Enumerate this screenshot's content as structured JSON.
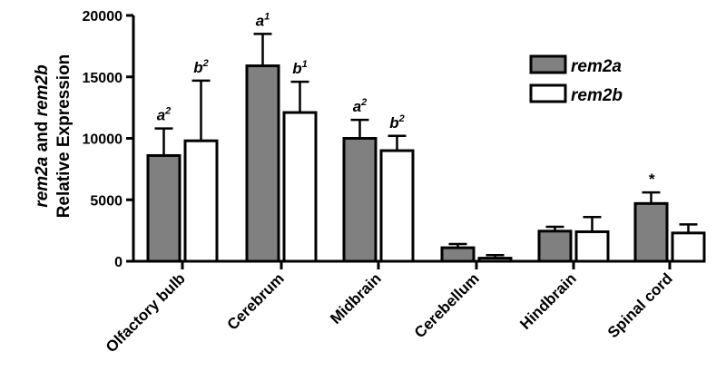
{
  "chart_data": {
    "type": "bar",
    "title": "",
    "xlabel": "",
    "ylabel": {
      "line1_italic_a": "rem2a",
      "line1_plain": " and ",
      "line1_italic_b": "rem2b",
      "line2": "Relative Expression"
    },
    "ylim": [
      0,
      20000
    ],
    "yticks": [
      0,
      5000,
      10000,
      15000,
      20000
    ],
    "categories": [
      "Olfactory bulb",
      "Cerebrum",
      "Midbrain",
      "Cerebellum",
      "Hindbrain",
      "Spinal cord"
    ],
    "series": [
      {
        "name": "rem2a",
        "color": "#808080",
        "values": [
          8600,
          15900,
          10000,
          1100,
          2450,
          4700
        ],
        "errors": [
          2200,
          2600,
          1500,
          300,
          350,
          900
        ],
        "annotations": [
          {
            "base": "a",
            "sup": "2"
          },
          {
            "base": "a",
            "sup": "1"
          },
          {
            "base": "a",
            "sup": "2"
          },
          null,
          null,
          {
            "base": "*",
            "sup": ""
          }
        ]
      },
      {
        "name": "rem2b",
        "color": "#ffffff",
        "values": [
          9800,
          12100,
          9000,
          250,
          2400,
          2300
        ],
        "errors": [
          4900,
          2500,
          1200,
          250,
          1200,
          700
        ],
        "annotations": [
          {
            "base": "b",
            "sup": "2"
          },
          {
            "base": "b",
            "sup": "1"
          },
          {
            "base": "b",
            "sup": "2"
          },
          null,
          null,
          null
        ]
      }
    ],
    "legend_position": "top-right",
    "grid": false
  }
}
